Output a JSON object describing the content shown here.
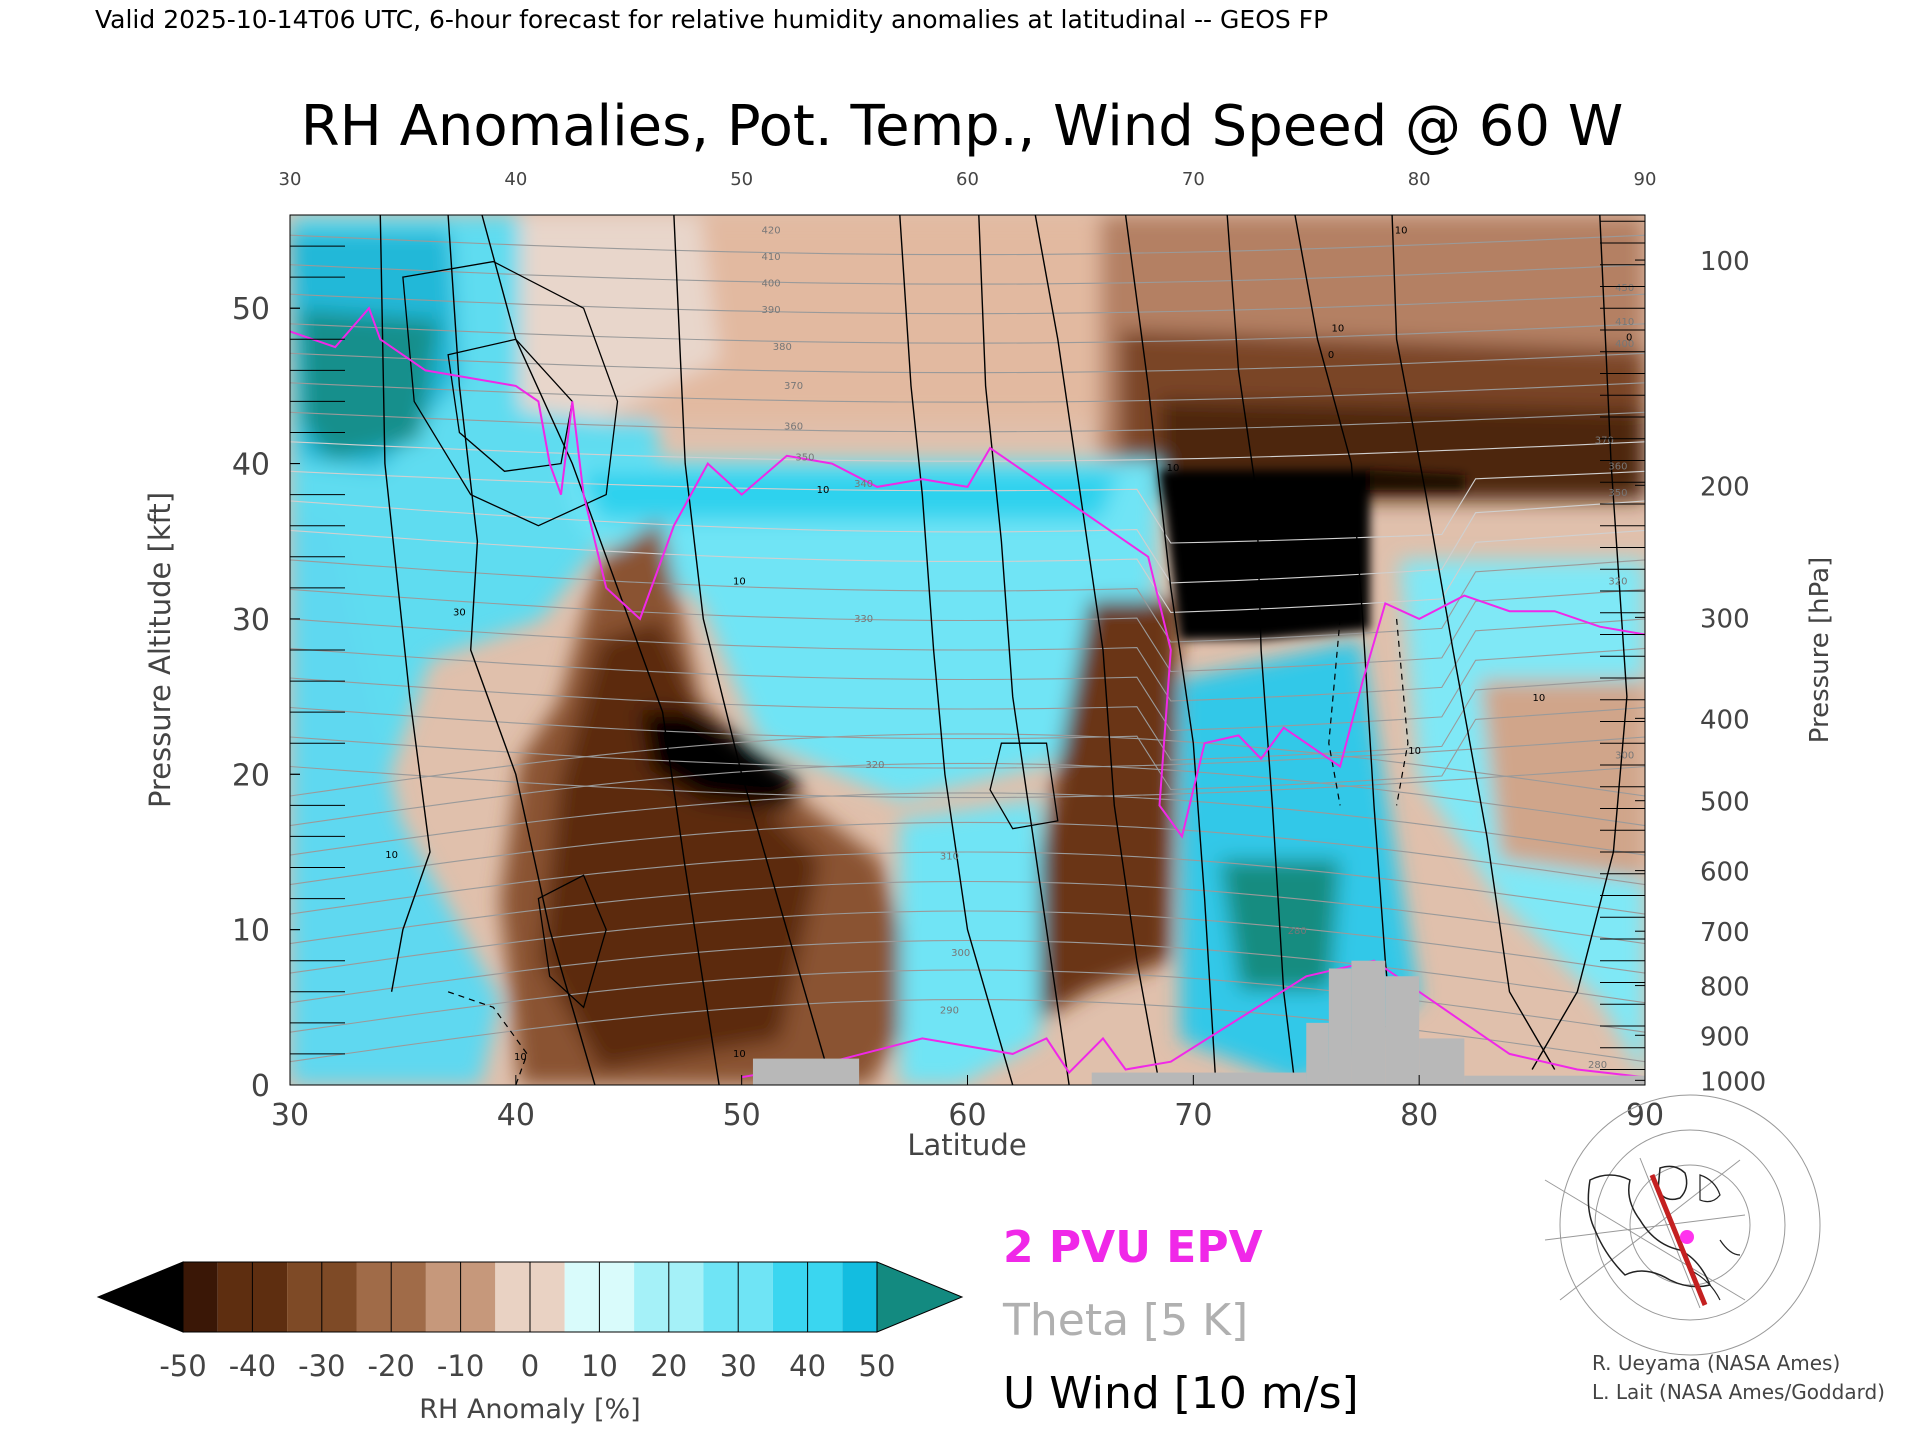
{
  "header": {
    "valid_line": "Valid 2025-10-14T06 UTC, 6-hour forecast for relative humidity anomalies at latitudinal -- GEOS FP",
    "title": "RH Anomalies, Pot. Temp., Wind Speed @ 60 W"
  },
  "chart_data": {
    "type": "heatmap",
    "title": "RH Anomalies, Pot. Temp., Wind Speed @ 60 W",
    "xlabel": "Latitude",
    "ylabel": "Pressure Altitude [kft]",
    "y2label": "Pressure [hPa]",
    "xlim": [
      30,
      90
    ],
    "ylim": [
      0,
      56
    ],
    "x_ticks": [
      30,
      40,
      50,
      60,
      70,
      80,
      90
    ],
    "x_ticks_labels": [
      "30",
      "40",
      "50",
      "60",
      "70",
      "80",
      "90"
    ],
    "y_ticks": [
      0,
      10,
      20,
      30,
      40,
      50
    ],
    "y_ticks_labels": [
      "0",
      "10",
      "20",
      "30",
      "40",
      "50"
    ],
    "pressure_ticks": [
      {
        "label": "100",
        "kft": 53.1
      },
      {
        "label": "200",
        "kft": 38.6
      },
      {
        "label": "300",
        "kft": 30.1
      },
      {
        "label": "400",
        "kft": 23.6
      },
      {
        "label": "500",
        "kft": 18.3
      },
      {
        "label": "600",
        "kft": 13.8
      },
      {
        "label": "700",
        "kft": 9.9
      },
      {
        "label": "800",
        "kft": 6.4
      },
      {
        "label": "900",
        "kft": 3.2
      },
      {
        "label": "1000",
        "kft": 0.3
      }
    ],
    "theta_labels": [
      {
        "text": "420",
        "lat": 51.3,
        "kft": 55.0
      },
      {
        "text": "410",
        "lat": 51.3,
        "kft": 53.3
      },
      {
        "text": "400",
        "lat": 51.3,
        "kft": 51.6
      },
      {
        "text": "390",
        "lat": 51.3,
        "kft": 49.9
      },
      {
        "text": "380",
        "lat": 51.8,
        "kft": 47.5
      },
      {
        "text": "370",
        "lat": 52.3,
        "kft": 45.0
      },
      {
        "text": "360",
        "lat": 52.3,
        "kft": 42.4
      },
      {
        "text": "350",
        "lat": 52.8,
        "kft": 40.4
      },
      {
        "text": "340",
        "lat": 55.4,
        "kft": 38.7
      },
      {
        "text": "330",
        "lat": 55.4,
        "kft": 30.0
      },
      {
        "text": "320",
        "lat": 55.9,
        "kft": 20.6
      },
      {
        "text": "310",
        "lat": 59.2,
        "kft": 14.7
      },
      {
        "text": "300",
        "lat": 59.7,
        "kft": 8.5
      },
      {
        "text": "290",
        "lat": 59.2,
        "kft": 4.8
      },
      {
        "text": "280",
        "lat": 74.6,
        "kft": 9.9
      },
      {
        "text": "450",
        "lat": 89.1,
        "kft": 51.3
      },
      {
        "text": "410",
        "lat": 89.1,
        "kft": 49.1
      },
      {
        "text": "400",
        "lat": 89.1,
        "kft": 47.7
      },
      {
        "text": "370",
        "lat": 88.2,
        "kft": 41.5
      },
      {
        "text": "360",
        "lat": 88.8,
        "kft": 39.8
      },
      {
        "text": "350",
        "lat": 88.8,
        "kft": 38.1
      },
      {
        "text": "320",
        "lat": 88.8,
        "kft": 32.4
      },
      {
        "text": "300",
        "lat": 89.1,
        "kft": 21.2
      },
      {
        "text": "280",
        "lat": 87.9,
        "kft": 1.3
      }
    ],
    "wind_labels": [
      {
        "text": "30",
        "lat": 37.5,
        "kft": 30.4
      },
      {
        "text": "10",
        "lat": 34.5,
        "kft": 14.8
      },
      {
        "text": "10",
        "lat": 69.1,
        "kft": 39.7
      },
      {
        "text": "10",
        "lat": 53.6,
        "kft": 38.3
      },
      {
        "text": "10",
        "lat": 79.2,
        "kft": 55.0
      },
      {
        "text": "10",
        "lat": 49.9,
        "kft": 32.4
      },
      {
        "text": "10",
        "lat": 85.3,
        "kft": 24.9
      },
      {
        "text": "10",
        "lat": 79.8,
        "kft": 21.5
      },
      {
        "text": "0",
        "lat": 89.3,
        "kft": 48.1
      },
      {
        "text": "0",
        "lat": 76.1,
        "kft": 47.0
      },
      {
        "text": "10",
        "lat": 76.4,
        "kft": 48.7
      },
      {
        "text": "10",
        "lat": 40.2,
        "kft": 1.8
      },
      {
        "text": "10",
        "lat": 49.9,
        "kft": 2.0
      }
    ],
    "legend": {
      "pvu": "2 PVU EPV",
      "theta": "Theta [5 K]",
      "wind": "U Wind [10 m/s]"
    },
    "colorbar": {
      "label": "RH Anomaly [%]",
      "ticks": [
        "-50",
        "-40",
        "-30",
        "-20",
        "-10",
        "0",
        "10",
        "20",
        "30",
        "40",
        "50"
      ],
      "min": -50,
      "max": 50,
      "extend": "both",
      "colors": [
        "#000000",
        "#3a1706",
        "#5e2e10",
        "#7e4a26",
        "#a06b48",
        "#c6987b",
        "#e9d2c3",
        "#d9fbfb",
        "#a5f1f8",
        "#6fe4f5",
        "#3ad6f0",
        "#13bde0",
        "#0d97b8",
        "#138a80"
      ]
    },
    "credits": [
      "R. Ueyama (NASA Ames)",
      "L. Lait (NASA Ames/Goddard)"
    ],
    "colors": {
      "pvu": "#f028e8",
      "theta": "#a8a8a8",
      "wind": "#000000",
      "terrain": "#b8b8b8"
    },
    "grid": false
  }
}
